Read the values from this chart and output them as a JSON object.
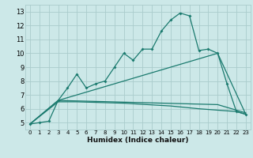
{
  "xlabel": "Humidex (Indice chaleur)",
  "background_color": "#cce8e8",
  "grid_color": "#aacccc",
  "line_color": "#1a7a6e",
  "xlim": [
    -0.5,
    23.5
  ],
  "ylim": [
    4.5,
    13.5
  ],
  "xticks": [
    0,
    1,
    2,
    3,
    4,
    5,
    6,
    7,
    8,
    9,
    10,
    11,
    12,
    13,
    14,
    15,
    16,
    17,
    18,
    19,
    20,
    21,
    22,
    23
  ],
  "yticks": [
    5,
    6,
    7,
    8,
    9,
    10,
    11,
    12,
    13
  ],
  "series1_x": [
    0,
    1,
    2,
    3,
    4,
    5,
    6,
    7,
    8,
    9,
    10,
    11,
    12,
    13,
    14,
    15,
    16,
    17,
    18,
    19,
    20,
    21,
    22,
    23
  ],
  "series1_y": [
    4.9,
    5.0,
    5.1,
    6.6,
    7.5,
    8.5,
    7.5,
    7.8,
    8.0,
    9.0,
    10.0,
    9.5,
    10.3,
    10.3,
    11.6,
    12.4,
    12.9,
    12.7,
    10.2,
    10.3,
    10.0,
    7.8,
    5.8,
    5.6
  ],
  "series2_x": [
    0,
    3,
    20,
    23
  ],
  "series2_y": [
    4.9,
    6.6,
    10.0,
    5.6
  ],
  "series3_x": [
    0,
    3,
    20,
    23
  ],
  "series3_y": [
    4.9,
    6.6,
    6.3,
    5.7
  ],
  "series4_x": [
    0,
    3,
    5,
    10,
    15,
    18,
    20,
    22,
    23
  ],
  "series4_y": [
    4.9,
    6.5,
    6.5,
    6.4,
    6.2,
    6.0,
    5.9,
    5.8,
    5.6
  ]
}
